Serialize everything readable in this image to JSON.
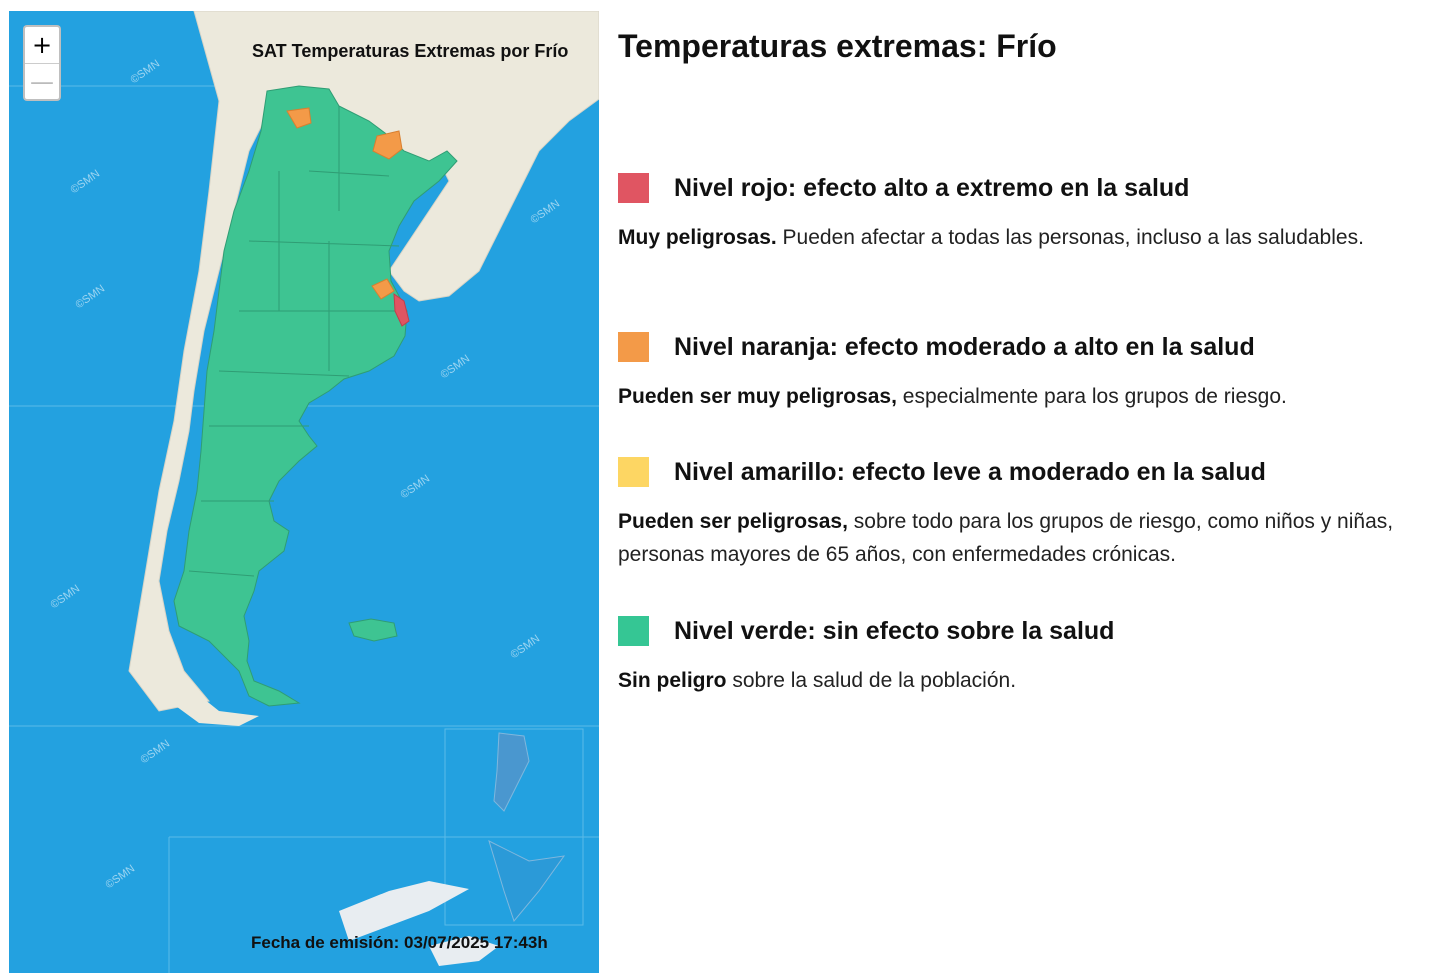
{
  "map": {
    "title": "SAT Temperaturas Extremas por Frío",
    "emission_date": "Fecha de emisión: 03/07/2025 17:43h",
    "zoom_in_label": "+",
    "zoom_out_label": "—",
    "watermark": "©SMN",
    "colors": {
      "ocean": "#23a1e0",
      "land": "#ece9dc",
      "verde": "#3ec492",
      "naranja": "#f39a48",
      "rojo": "#e05562"
    }
  },
  "legend": {
    "heading": "Temperaturas extremas: Frío",
    "levels": [
      {
        "color": "#e05562",
        "title": "Nivel rojo: efecto alto a extremo en la salud",
        "bold": "Muy peligrosas.",
        "text": " Pueden afectar a todas las personas, incluso a las saludables."
      },
      {
        "color": "#f39a48",
        "title": "Nivel naranja: efecto moderado a alto en la salud",
        "bold": "Pueden ser muy peligrosas,",
        "text": " especialmente para los grupos de riesgo."
      },
      {
        "color": "#fdd663",
        "title": "Nivel amarillo: efecto leve a moderado en la salud",
        "bold": "Pueden ser peligrosas,",
        "text": " sobre todo para los grupos de riesgo, como niños y niñas, personas mayores de 65 años, con enfermedades crónicas."
      },
      {
        "color": "#35c694",
        "title": "Nivel verde: sin efecto sobre la salud",
        "bold": "Sin peligro",
        "text": " sobre la salud de la población."
      }
    ]
  }
}
